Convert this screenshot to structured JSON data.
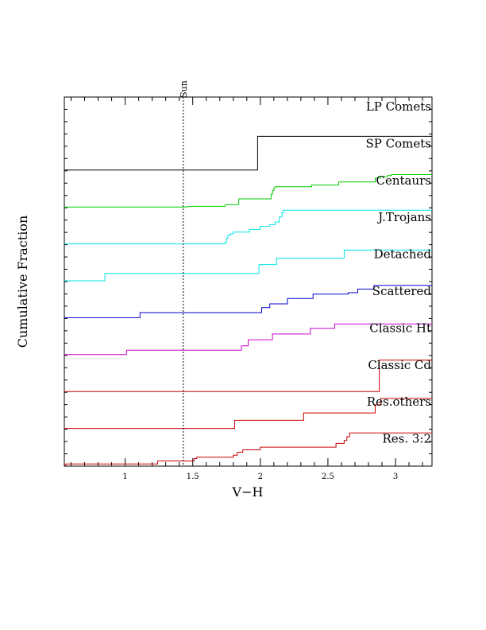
{
  "chart_data": {
    "type": "line",
    "subtype": "step-cumulative-stacked",
    "xlabel": "V−H",
    "ylabel": "Cumulative Fraction",
    "xlim": [
      0.55,
      3.27
    ],
    "x_ticks": [
      1,
      1.5,
      2,
      2.5,
      3
    ],
    "x_tick_labels": [
      "1",
      "1.5",
      "2",
      "2.5",
      "3"
    ],
    "grid": false,
    "reference_line": {
      "x": 1.43,
      "label": "Sun",
      "style": "dotted"
    },
    "series": [
      {
        "name": "LP Comets",
        "color": "#000000",
        "steps": []
      },
      {
        "name": "SP Comets",
        "color": "#000000",
        "steps": [
          [
            0.55,
            0.0
          ],
          [
            1.98,
            0.0
          ],
          [
            1.98,
            1.0
          ],
          [
            3.27,
            1.0
          ]
        ]
      },
      {
        "name": "Centaurs",
        "color": "#00cc00",
        "steps": [
          [
            0.55,
            0.0
          ],
          [
            1.46,
            0.0
          ],
          [
            1.46,
            0.02
          ],
          [
            1.74,
            0.02
          ],
          [
            1.74,
            0.07
          ],
          [
            1.84,
            0.07
          ],
          [
            1.84,
            0.24
          ],
          [
            2.08,
            0.24
          ],
          [
            2.08,
            0.38
          ],
          [
            2.09,
            0.38
          ],
          [
            2.09,
            0.48
          ],
          [
            2.1,
            0.48
          ],
          [
            2.1,
            0.57
          ],
          [
            2.11,
            0.57
          ],
          [
            2.11,
            0.6
          ],
          [
            2.38,
            0.6
          ],
          [
            2.38,
            0.65
          ],
          [
            2.58,
            0.65
          ],
          [
            2.58,
            0.74
          ],
          [
            2.85,
            0.74
          ],
          [
            2.85,
            0.86
          ],
          [
            2.89,
            0.86
          ],
          [
            2.89,
            0.9
          ],
          [
            2.94,
            0.9
          ],
          [
            2.94,
            0.93
          ],
          [
            2.97,
            0.93
          ],
          [
            2.97,
            0.96
          ],
          [
            3.27,
            0.96
          ]
        ]
      },
      {
        "name": "J.Trojans",
        "color": "#00e5e5",
        "steps": [
          [
            0.55,
            0.0
          ],
          [
            1.74,
            0.0
          ],
          [
            1.74,
            0.04
          ],
          [
            1.75,
            0.04
          ],
          [
            1.75,
            0.17
          ],
          [
            1.76,
            0.17
          ],
          [
            1.76,
            0.26
          ],
          [
            1.78,
            0.26
          ],
          [
            1.78,
            0.3
          ],
          [
            1.8,
            0.3
          ],
          [
            1.8,
            0.35
          ],
          [
            1.92,
            0.35
          ],
          [
            1.92,
            0.43
          ],
          [
            2.0,
            0.43
          ],
          [
            2.0,
            0.52
          ],
          [
            2.07,
            0.52
          ],
          [
            2.07,
            0.57
          ],
          [
            2.11,
            0.57
          ],
          [
            2.11,
            0.65
          ],
          [
            2.14,
            0.65
          ],
          [
            2.14,
            0.8
          ],
          [
            2.16,
            0.8
          ],
          [
            2.16,
            0.93
          ],
          [
            2.17,
            0.93
          ],
          [
            2.17,
            1.0
          ],
          [
            3.27,
            1.0
          ]
        ]
      },
      {
        "name": "Detached",
        "color": "#00e5e5",
        "steps": [
          [
            0.55,
            0.0
          ],
          [
            0.85,
            0.0
          ],
          [
            0.85,
            0.22
          ],
          [
            1.99,
            0.22
          ],
          [
            1.99,
            0.48
          ],
          [
            2.12,
            0.48
          ],
          [
            2.12,
            0.67
          ],
          [
            2.62,
            0.67
          ],
          [
            2.62,
            0.91
          ],
          [
            3.27,
            0.91
          ]
        ]
      },
      {
        "name": "Scattered",
        "color": "#0000cc",
        "steps": [
          [
            0.55,
            0.0
          ],
          [
            1.11,
            0.0
          ],
          [
            1.11,
            0.15
          ],
          [
            2.01,
            0.15
          ],
          [
            2.01,
            0.3
          ],
          [
            2.07,
            0.3
          ],
          [
            2.07,
            0.41
          ],
          [
            2.2,
            0.41
          ],
          [
            2.2,
            0.57
          ],
          [
            2.39,
            0.57
          ],
          [
            2.39,
            0.7
          ],
          [
            2.65,
            0.7
          ],
          [
            2.65,
            0.74
          ],
          [
            2.72,
            0.74
          ],
          [
            2.72,
            0.85
          ],
          [
            2.84,
            0.85
          ],
          [
            2.84,
            0.96
          ],
          [
            3.27,
            0.96
          ]
        ]
      },
      {
        "name": "Classic Ht",
        "color": "#cc00cc",
        "steps": [
          [
            0.55,
            0.0
          ],
          [
            1.01,
            0.0
          ],
          [
            1.01,
            0.13
          ],
          [
            1.86,
            0.13
          ],
          [
            1.86,
            0.26
          ],
          [
            1.91,
            0.26
          ],
          [
            1.91,
            0.44
          ],
          [
            2.09,
            0.44
          ],
          [
            2.09,
            0.61
          ],
          [
            2.37,
            0.61
          ],
          [
            2.37,
            0.78
          ],
          [
            2.55,
            0.78
          ],
          [
            2.55,
            0.91
          ],
          [
            3.27,
            0.91
          ]
        ]
      },
      {
        "name": "Classic Cd",
        "color": "#cc0000",
        "steps": [
          [
            0.55,
            0.0
          ],
          [
            2.88,
            0.0
          ],
          [
            2.88,
            0.93
          ],
          [
            3.27,
            0.93
          ]
        ]
      },
      {
        "name": "Res.others",
        "color": "#cc0000",
        "steps": [
          [
            0.55,
            0.0
          ],
          [
            1.81,
            0.0
          ],
          [
            1.81,
            0.24
          ],
          [
            2.32,
            0.24
          ],
          [
            2.32,
            0.46
          ],
          [
            2.85,
            0.46
          ],
          [
            2.85,
            0.7
          ],
          [
            2.89,
            0.7
          ],
          [
            2.89,
            0.89
          ],
          [
            3.27,
            0.89
          ]
        ]
      },
      {
        "name": "Res. 3:2",
        "color": "#cc0000",
        "steps": [
          [
            0.55,
            0.0
          ],
          [
            0.56,
            0.0
          ],
          [
            0.56,
            0.04
          ],
          [
            1.24,
            0.04
          ],
          [
            1.24,
            0.13
          ],
          [
            1.51,
            0.13
          ],
          [
            1.51,
            0.2
          ],
          [
            1.53,
            0.2
          ],
          [
            1.53,
            0.24
          ],
          [
            1.8,
            0.24
          ],
          [
            1.8,
            0.3
          ],
          [
            1.83,
            0.3
          ],
          [
            1.83,
            0.39
          ],
          [
            1.87,
            0.39
          ],
          [
            1.87,
            0.46
          ],
          [
            2.0,
            0.46
          ],
          [
            2.0,
            0.54
          ],
          [
            2.56,
            0.54
          ],
          [
            2.56,
            0.65
          ],
          [
            2.62,
            0.65
          ],
          [
            2.62,
            0.74
          ],
          [
            2.64,
            0.74
          ],
          [
            2.64,
            0.85
          ],
          [
            2.66,
            0.85
          ],
          [
            2.66,
            0.96
          ],
          [
            3.27,
            0.96
          ]
        ]
      }
    ]
  }
}
